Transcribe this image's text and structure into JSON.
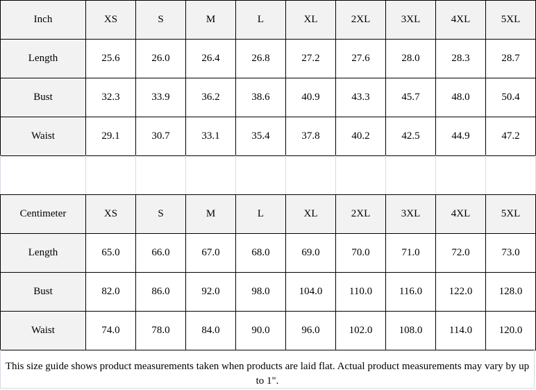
{
  "inch_table": {
    "header": [
      "Inch",
      "XS",
      "S",
      "M",
      "L",
      "XL",
      "2XL",
      "3XL",
      "4XL",
      "5XL"
    ],
    "rows": [
      [
        "Length",
        "25.6",
        "26.0",
        "26.4",
        "26.8",
        "27.2",
        "27.6",
        "28.0",
        "28.3",
        "28.7"
      ],
      [
        "Bust",
        "32.3",
        "33.9",
        "36.2",
        "38.6",
        "40.9",
        "43.3",
        "45.7",
        "48.0",
        "50.4"
      ],
      [
        "Waist",
        "29.1",
        "30.7",
        "33.1",
        "35.4",
        "37.8",
        "40.2",
        "42.5",
        "44.9",
        "47.2"
      ]
    ]
  },
  "cm_table": {
    "header": [
      "Centimeter",
      "XS",
      "S",
      "M",
      "L",
      "XL",
      "2XL",
      "3XL",
      "4XL",
      "5XL"
    ],
    "rows": [
      [
        "Length",
        "65.0",
        "66.0",
        "67.0",
        "68.0",
        "69.0",
        "70.0",
        "71.0",
        "72.0",
        "73.0"
      ],
      [
        "Bust",
        "82.0",
        "86.0",
        "92.0",
        "98.0",
        "104.0",
        "110.0",
        "116.0",
        "122.0",
        "128.0"
      ],
      [
        "Waist",
        "74.0",
        "78.0",
        "84.0",
        "90.0",
        "96.0",
        "102.0",
        "108.0",
        "114.0",
        "120.0"
      ]
    ]
  },
  "footnote": "This size guide shows product measurements taken when products are laid flat. Actual product measurements may vary by up to 1\".",
  "colors": {
    "header_bg": "#f2f2f2",
    "grid": "#000000",
    "faint_grid": "#d5dbe3"
  }
}
